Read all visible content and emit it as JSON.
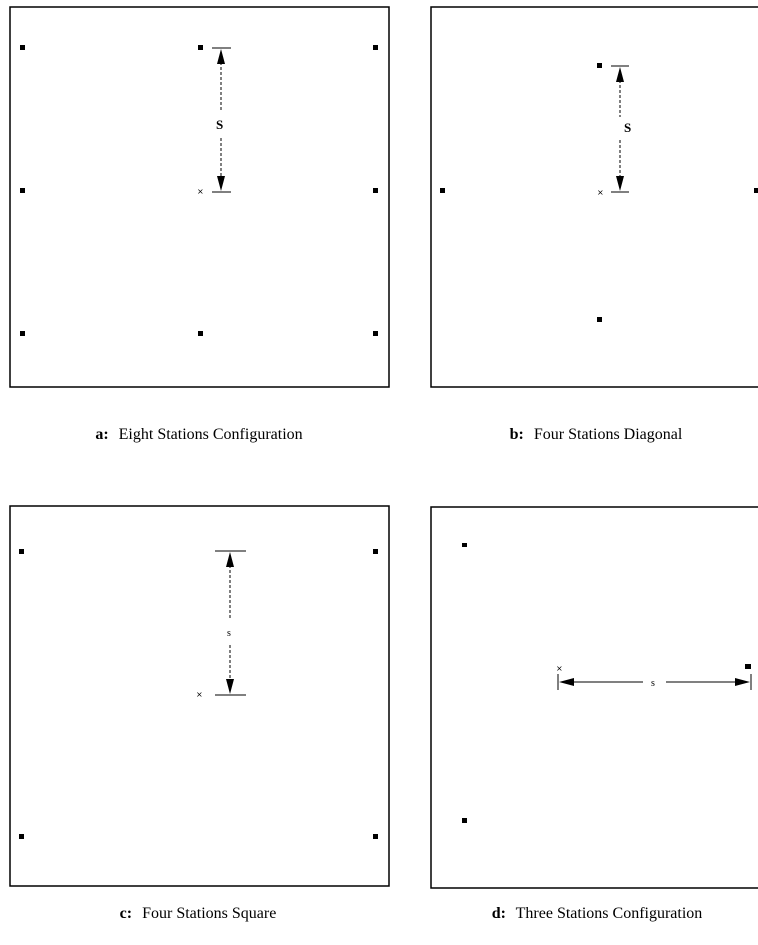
{
  "panels": {
    "a": {
      "caption_letter": "a:",
      "caption_text": "Eight  Stations  Configuration",
      "spacing_label": "S",
      "target_mark": "×"
    },
    "b": {
      "caption_letter": "b:",
      "caption_text": "Four Stations Diagonal",
      "spacing_label": "S",
      "target_mark": "×"
    },
    "c": {
      "caption_letter": "c:",
      "caption_text": "Four Stations Square",
      "spacing_label": "s",
      "target_mark": "×"
    },
    "d": {
      "caption_letter": "d:",
      "caption_text": "Three Stations Configuration",
      "spacing_label": "s",
      "target_mark": "×"
    }
  }
}
